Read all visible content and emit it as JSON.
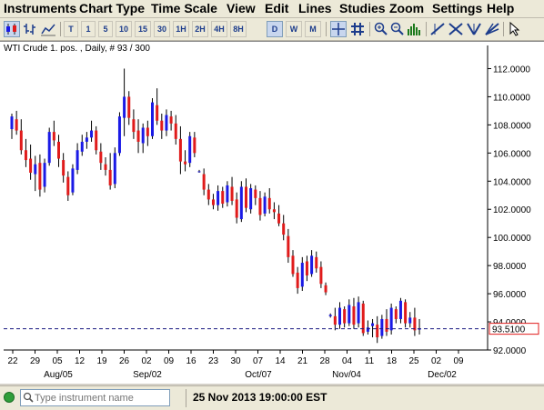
{
  "menu": [
    "Instruments",
    "Chart Type",
    "Time Scale",
    "View",
    "Edit",
    "Lines",
    "Studies",
    "Zoom",
    "Settings",
    "Help"
  ],
  "toolbar": {
    "timeframes": [
      "T",
      "1",
      "5",
      "10",
      "15",
      "30",
      "1H",
      "2H",
      "4H",
      "8H",
      "D",
      "W",
      "M"
    ],
    "active_timeframe": "D",
    "left_icons": [
      "candlestick-chart-icon",
      "bar-chart-icon",
      "line-chart-icon"
    ],
    "tool_icons": [
      "crosshair-icon",
      "grid-icon",
      "volume-icon",
      "trendline-icon",
      "fibonacci-icon",
      "channel-icon",
      "gann-icon",
      "pointer-icon"
    ]
  },
  "chart": {
    "legend": "WTI Crude 1. pos. , Daily, # 93 / 300",
    "current_price_label": "93.5100",
    "colors": {
      "up": "#1a1ae6",
      "down": "#e01b1b",
      "price_line": "#1a1a80",
      "price_box": "#e01b1b"
    }
  },
  "chart_data": {
    "type": "candlestick",
    "ylim": [
      92.0,
      113.0
    ],
    "y_ticks": [
      "112.0000",
      "110.0000",
      "108.0000",
      "106.0000",
      "104.0000",
      "102.0000",
      "100.0000",
      "98.0000",
      "96.0000",
      "94.0000",
      "92.0000"
    ],
    "x_ticks": [
      "22",
      "29",
      "05",
      "12",
      "19",
      "26",
      "02",
      "09",
      "16",
      "23",
      "30",
      "07",
      "14",
      "21",
      "28",
      "04",
      "11",
      "18",
      "25",
      "02",
      "09"
    ],
    "month_labels": [
      "Aug/05",
      "Sep/02",
      "Oct/07",
      "Nov/04",
      "Dec/02"
    ],
    "current_price": 93.51,
    "candles": [
      [
        107.7,
        108.8,
        107.0,
        108.6
      ],
      [
        108.4,
        109.0,
        107.3,
        107.6
      ],
      [
        107.6,
        108.4,
        105.9,
        106.2
      ],
      [
        106.2,
        107.0,
        105.0,
        105.5
      ],
      [
        105.6,
        106.6,
        104.1,
        104.6
      ],
      [
        104.5,
        105.8,
        103.3,
        105.2
      ],
      [
        105.3,
        105.9,
        102.9,
        103.4
      ],
      [
        103.6,
        105.6,
        103.2,
        105.3
      ],
      [
        105.3,
        107.8,
        105.1,
        107.5
      ],
      [
        107.5,
        108.3,
        106.5,
        106.9
      ],
      [
        106.8,
        107.3,
        105.0,
        105.6
      ],
      [
        105.5,
        106.0,
        103.9,
        104.4
      ],
      [
        104.3,
        104.7,
        102.6,
        103.0
      ],
      [
        103.2,
        105.2,
        103.0,
        104.9
      ],
      [
        104.8,
        106.7,
        104.5,
        106.2
      ],
      [
        106.1,
        107.3,
        105.8,
        106.8
      ],
      [
        106.8,
        107.5,
        106.3,
        107.1
      ],
      [
        107.1,
        108.3,
        106.8,
        107.6
      ],
      [
        107.6,
        107.9,
        105.9,
        106.2
      ],
      [
        106.1,
        106.7,
        104.8,
        105.3
      ],
      [
        105.2,
        105.7,
        104.4,
        104.8
      ],
      [
        104.8,
        106.0,
        103.4,
        103.7
      ],
      [
        103.8,
        106.4,
        103.5,
        106.0
      ],
      [
        106.0,
        108.9,
        105.8,
        108.6
      ],
      [
        108.5,
        112.0,
        107.2,
        110.0
      ],
      [
        110.0,
        110.4,
        108.0,
        108.5
      ],
      [
        108.4,
        109.1,
        107.0,
        107.5
      ],
      [
        107.6,
        108.4,
        106.0,
        106.8
      ],
      [
        106.7,
        108.1,
        106.0,
        107.8
      ],
      [
        107.8,
        108.3,
        106.5,
        107.2
      ],
      [
        107.2,
        109.9,
        107.0,
        109.6
      ],
      [
        109.4,
        110.6,
        108.0,
        108.3
      ],
      [
        108.3,
        108.8,
        107.0,
        107.6
      ],
      [
        107.6,
        109.1,
        107.2,
        108.7
      ],
      [
        108.6,
        109.0,
        107.6,
        108.1
      ],
      [
        108.1,
        108.7,
        106.6,
        107.0
      ],
      [
        107.0,
        107.9,
        104.5,
        105.4
      ],
      [
        105.4,
        106.2,
        104.7,
        105.2
      ],
      [
        105.3,
        107.5,
        105.0,
        107.2
      ],
      [
        107.1,
        107.5,
        105.7,
        106.0
      ],
      [
        104.7,
        104.8,
        104.6,
        104.7
      ],
      [
        104.5,
        104.9,
        103.0,
        103.4
      ],
      [
        103.4,
        103.8,
        102.3,
        102.7
      ],
      [
        102.7,
        103.1,
        102.0,
        102.3
      ],
      [
        102.3,
        103.7,
        101.9,
        103.3
      ],
      [
        103.3,
        103.6,
        102.1,
        102.4
      ],
      [
        102.5,
        104.0,
        102.2,
        103.7
      ],
      [
        103.6,
        104.3,
        102.3,
        102.6
      ],
      [
        102.7,
        103.2,
        101.0,
        101.4
      ],
      [
        101.3,
        104.0,
        101.1,
        103.6
      ],
      [
        103.6,
        104.2,
        101.8,
        102.1
      ],
      [
        102.0,
        103.8,
        101.7,
        103.5
      ],
      [
        103.4,
        103.7,
        102.3,
        102.8
      ],
      [
        102.8,
        103.3,
        101.2,
        101.6
      ],
      [
        101.7,
        103.2,
        101.5,
        102.9
      ],
      [
        102.8,
        103.5,
        101.7,
        102.0
      ],
      [
        102.0,
        102.5,
        101.3,
        101.8
      ],
      [
        101.7,
        102.3,
        100.8,
        101.0
      ],
      [
        101.0,
        101.6,
        99.8,
        100.2
      ],
      [
        100.1,
        100.6,
        98.2,
        98.6
      ],
      [
        98.7,
        99.1,
        97.2,
        97.4
      ],
      [
        97.5,
        97.9,
        96.0,
        96.4
      ],
      [
        96.5,
        98.6,
        96.2,
        98.2
      ],
      [
        98.3,
        98.7,
        96.9,
        97.3
      ],
      [
        97.4,
        99.1,
        97.2,
        98.7
      ],
      [
        98.6,
        99.0,
        97.5,
        97.8
      ],
      [
        97.9,
        98.3,
        96.4,
        96.7
      ],
      [
        96.6,
        96.8,
        95.9,
        96.1
      ],
      [
        94.4,
        94.6,
        94.3,
        94.5
      ],
      [
        94.4,
        95.0,
        93.4,
        93.8
      ],
      [
        93.8,
        95.4,
        93.5,
        95.0
      ],
      [
        94.9,
        95.1,
        93.6,
        93.9
      ],
      [
        93.9,
        95.6,
        93.7,
        95.2
      ],
      [
        95.1,
        95.7,
        93.5,
        93.8
      ],
      [
        93.9,
        95.8,
        93.6,
        95.4
      ],
      [
        95.3,
        95.5,
        93.0,
        93.2
      ],
      [
        93.3,
        94.1,
        93.1,
        93.6
      ],
      [
        93.7,
        94.2,
        92.9,
        93.9
      ],
      [
        93.8,
        94.4,
        92.5,
        92.9
      ],
      [
        93.0,
        94.5,
        92.8,
        94.2
      ],
      [
        94.2,
        94.9,
        93.0,
        93.3
      ],
      [
        93.4,
        95.3,
        93.1,
        95.0
      ],
      [
        94.9,
        95.1,
        93.9,
        94.2
      ],
      [
        94.2,
        95.7,
        93.9,
        95.5
      ],
      [
        95.4,
        95.6,
        93.6,
        93.9
      ],
      [
        93.9,
        94.7,
        93.6,
        94.3
      ],
      [
        94.3,
        95.0,
        93.0,
        93.4
      ],
      [
        93.5,
        94.2,
        93.1,
        93.51
      ]
    ]
  },
  "status": {
    "search_placeholder": "Type instrument name",
    "datetime": "25 Nov 2013 19:00:00 EST"
  }
}
